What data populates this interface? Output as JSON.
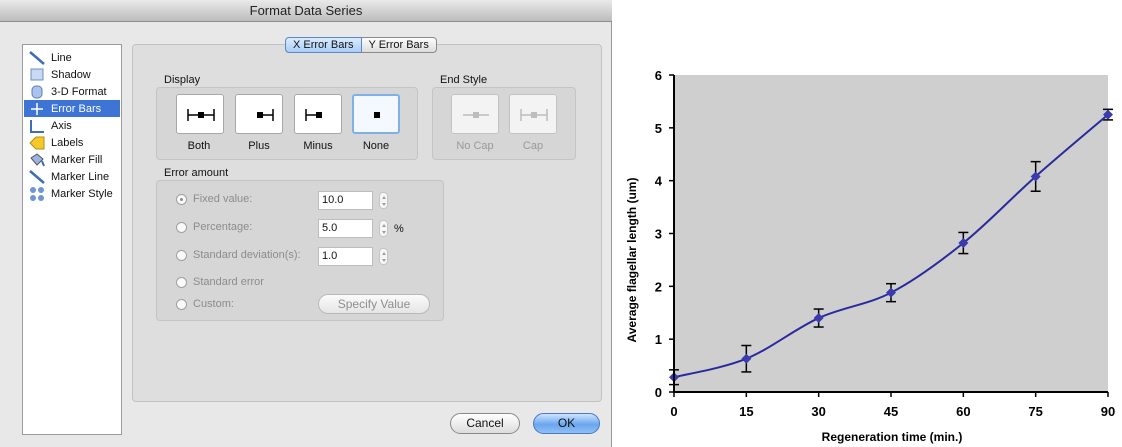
{
  "dialog": {
    "title": "Format Data Series",
    "categories": [
      {
        "label": "Line",
        "icon": "line-icon"
      },
      {
        "label": "Shadow",
        "icon": "shadow-icon"
      },
      {
        "label": "3-D Format",
        "icon": "3d-format-icon"
      },
      {
        "label": "Error Bars",
        "icon": "error-bars-icon"
      },
      {
        "label": "Axis",
        "icon": "axis-icon"
      },
      {
        "label": "Labels",
        "icon": "labels-icon"
      },
      {
        "label": "Marker Fill",
        "icon": "marker-fill-icon"
      },
      {
        "label": "Marker Line",
        "icon": "marker-line-icon"
      },
      {
        "label": "Marker Style",
        "icon": "marker-style-icon"
      }
    ],
    "selected_category": "Error Bars",
    "tabs": [
      {
        "label": "X Error Bars",
        "active": true
      },
      {
        "label": "Y Error Bars",
        "active": false
      }
    ],
    "display": {
      "title": "Display",
      "options": [
        {
          "label": "Both"
        },
        {
          "label": "Plus"
        },
        {
          "label": "Minus"
        },
        {
          "label": "None"
        }
      ],
      "selected": "None"
    },
    "end_style": {
      "title": "End Style",
      "options": [
        {
          "label": "No Cap"
        },
        {
          "label": "Cap"
        }
      ],
      "enabled": false
    },
    "error_amount": {
      "title": "Error amount",
      "fixed_value": {
        "label": "Fixed value:",
        "value": "10.0",
        "selected": true
      },
      "percentage": {
        "label": "Percentage:",
        "value": "5.0",
        "unit": "%"
      },
      "std_dev": {
        "label": "Standard deviation(s):",
        "value": "1.0"
      },
      "std_error": {
        "label": "Standard error"
      },
      "custom": {
        "label": "Custom:",
        "button": "Specify Value"
      },
      "enabled": false
    },
    "buttons": {
      "cancel": "Cancel",
      "ok": "OK"
    },
    "colors": {
      "accent": "#3d74d6"
    }
  },
  "chart_data": {
    "type": "line",
    "xlabel": "Regeneration time (min.)",
    "ylabel": "Average flagellar length (um)",
    "x": [
      0,
      15,
      30,
      45,
      60,
      75,
      90
    ],
    "y": [
      0.28,
      0.63,
      1.4,
      1.88,
      2.82,
      4.08,
      5.25
    ],
    "error": [
      0.14,
      0.25,
      0.17,
      0.17,
      0.2,
      0.28,
      0.1
    ],
    "xlim": [
      0,
      90
    ],
    "ylim": [
      0,
      6
    ],
    "x_ticks": [
      0,
      15,
      30,
      45,
      60,
      75,
      90
    ],
    "y_ticks": [
      0,
      1,
      2,
      3,
      4,
      5,
      6
    ],
    "grid": false,
    "smoothed": true,
    "colors": {
      "line": "#2a2a9e",
      "marker": "#3b3bb0",
      "plot_background": "#cfcfcf"
    }
  }
}
